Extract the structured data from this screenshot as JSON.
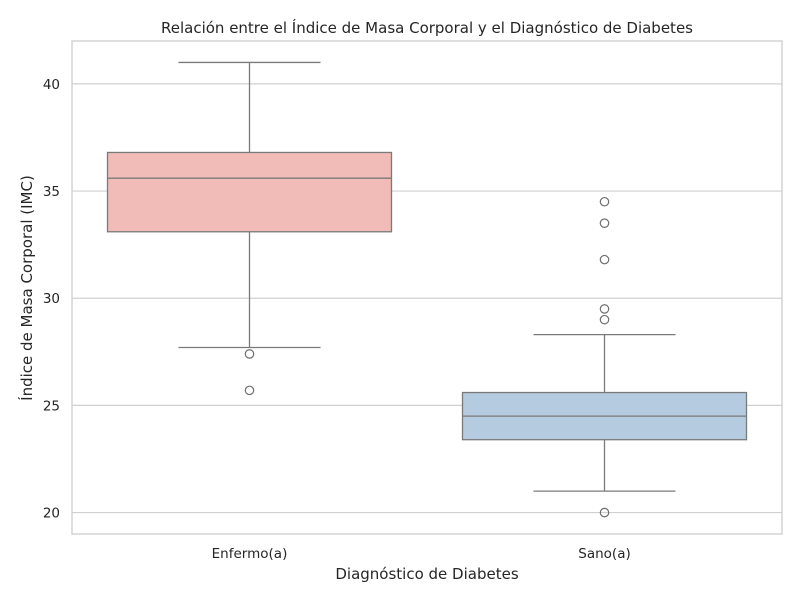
{
  "chart_data": {
    "type": "box",
    "title": "Relación entre el Índice de Masa Corporal y el Diagnóstico de Diabetes",
    "xlabel": "Diagnóstico de Diabetes",
    "ylabel": "Índice de Masa Corporal (IMC)",
    "ylim": [
      19,
      42
    ],
    "yticks": [
      20,
      25,
      30,
      35,
      40
    ],
    "grid": "horizontal",
    "categories": [
      "Enfermo(a)",
      "Sano(a)"
    ],
    "boxes": [
      {
        "category": "Enfermo(a)",
        "color": "#f1bbb8",
        "whisker_low": 27.7,
        "q1": 33.1,
        "median": 35.6,
        "q3": 36.8,
        "whisker_high": 41.0,
        "outliers": [
          27.4,
          25.7
        ]
      },
      {
        "category": "Sano(a)",
        "color": "#b5cbe0",
        "whisker_low": 21.0,
        "q1": 23.4,
        "median": 24.5,
        "q3": 25.6,
        "whisker_high": 28.3,
        "outliers": [
          34.5,
          33.5,
          31.8,
          29.5,
          29.0,
          20.0
        ]
      }
    ]
  }
}
